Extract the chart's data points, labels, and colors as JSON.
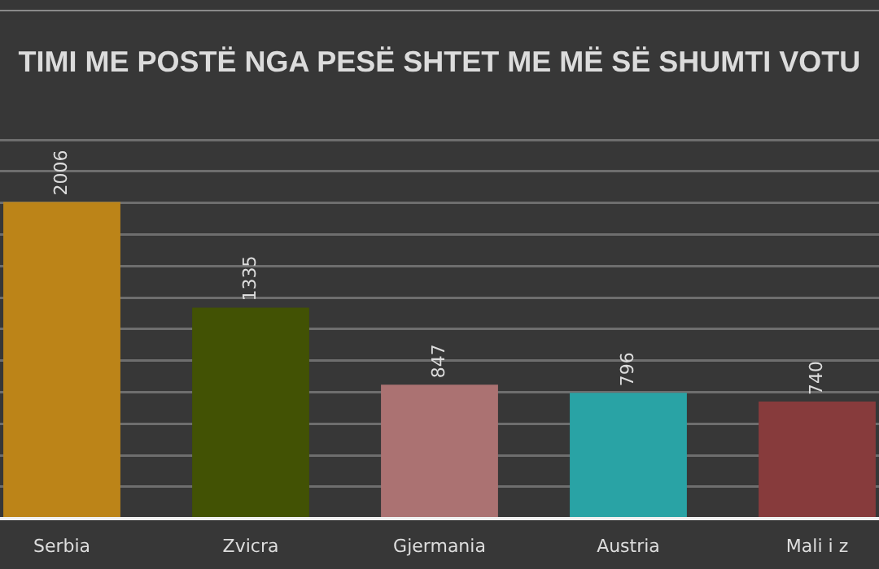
{
  "chart_data": {
    "type": "bar",
    "title": "TIMI ME POSTË NGA PESË SHTET ME MË SË SHUMTI VOTU",
    "categories": [
      "Serbia",
      "Zvicra",
      "Gjermania",
      "Austria",
      "Mali i z"
    ],
    "values": [
      2006,
      1335,
      847,
      796,
      740
    ],
    "colors": [
      "#bc8418",
      "#425204",
      "#ab7272",
      "#29a3a5",
      "#873b3c"
    ],
    "ylim": [
      0,
      2400
    ],
    "yticks": [
      {
        "value": 0,
        "label": null
      },
      {
        "value": 200,
        "label": null
      },
      {
        "value": 400,
        "label": null
      },
      {
        "value": 600,
        "label": null
      },
      {
        "value": 800,
        "label": null
      },
      {
        "value": 1000,
        "label": null
      },
      {
        "value": 1200,
        "label": null
      },
      {
        "value": 1400,
        "label": null
      },
      {
        "value": 1600,
        "label": null
      },
      {
        "value": 1800,
        "label": null
      },
      {
        "value": 2000,
        "label": null
      },
      {
        "value": 2200,
        "label": null
      },
      {
        "value": 2400,
        "label": null
      }
    ],
    "grid": "y",
    "tick_labels": "x",
    "data_labels": true,
    "legend": false
  }
}
